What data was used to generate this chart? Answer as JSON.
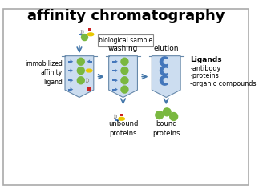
{
  "title": "affinity chromatography",
  "title_fontsize": 13,
  "green_color": "#7ab840",
  "blue_shape": "#4477bb",
  "yellow_color": "#e8c800",
  "red_color": "#cc2222",
  "gray_shape": "#aaaaaa",
  "arrow_color": "#4477aa",
  "column_color": "#ccddf0",
  "column_border": "#6688aa",
  "label_washing": "washing",
  "label_elution": "elution",
  "label_immobilized": "immobilized\naffinity\nligand",
  "label_unbound": "unbound\nproteins",
  "label_bound": "bound\nproteins",
  "label_biosample": "biological sample",
  "label_ligands": "Ligands",
  "ligand_items": [
    "-antibody",
    "-proteins",
    "-organic compounds"
  ]
}
